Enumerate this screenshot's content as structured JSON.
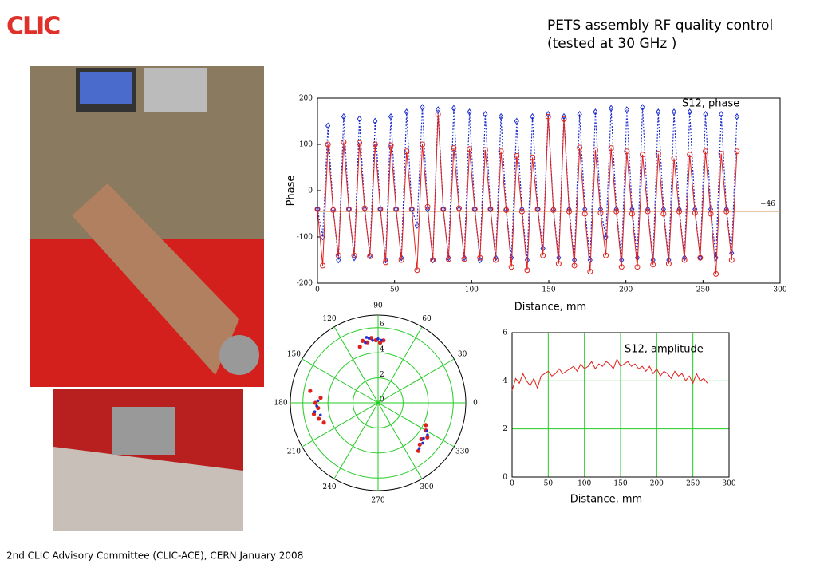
{
  "logo": "CLIC",
  "title": [
    "PETS assembly  RF quality control",
    "(tested at 30 GHz )"
  ],
  "footer": "2nd CLIC Advisory Committee (CLIC-ACE), CERN January 2008",
  "chart_data": [
    {
      "type": "line",
      "annotation": "S12, phase",
      "xlabel": "Distance, mm",
      "ylabel": "Phase",
      "xlim": [
        0,
        300
      ],
      "xticks": [
        0,
        50,
        100,
        150,
        200,
        250,
        300
      ],
      "ylim": [
        -200,
        200
      ],
      "yticks": [
        -200,
        -100,
        0,
        100,
        200
      ],
      "grid": false,
      "hline": {
        "value": -46,
        "label": "−46"
      },
      "x": [
        0,
        3.4,
        6.8,
        10.2,
        13.6,
        17,
        20.4,
        23.8,
        27.2,
        30.6,
        34,
        37.4,
        40.8,
        44.2,
        47.6,
        51,
        54.4,
        57.8,
        61.2,
        64.6,
        68,
        71.4,
        74.8,
        78.2,
        81.6,
        85,
        88.4,
        91.8,
        95.2,
        98.6,
        102,
        105.4,
        108.8,
        112.2,
        115.6,
        119,
        122.4,
        125.8,
        129.2,
        132.6,
        136,
        139.4,
        142.8,
        146.2,
        149.6,
        153,
        156.4,
        159.8,
        163.2,
        166.6,
        170,
        173.4,
        176.8,
        180.2,
        183.6,
        187,
        190.4,
        193.8,
        197.2,
        200.6,
        204,
        207.4,
        210.8,
        214.2,
        217.6,
        221,
        224.4,
        227.8,
        231.2,
        234.6,
        238,
        241.4,
        244.8,
        248.2,
        251.6,
        255,
        258.4,
        261.8,
        265.2,
        268.6,
        272
      ],
      "series": [
        {
          "color": "#1f2fd0",
          "marker": "diamond",
          "dash": true,
          "values": [
            -40,
            -100,
            140,
            -40,
            -150,
            160,
            -40,
            -145,
            155,
            -40,
            -140,
            150,
            -40,
            -150,
            160,
            -40,
            -145,
            170,
            -40,
            -75,
            180,
            -40,
            -150,
            175,
            -40,
            -145,
            178,
            -40,
            -145,
            170,
            -40,
            -150,
            165,
            -40,
            -145,
            160,
            -40,
            -145,
            150,
            -40,
            -150,
            160,
            -40,
            -125,
            165,
            -40,
            -145,
            160,
            -40,
            -150,
            165,
            -40,
            -150,
            170,
            -40,
            -100,
            178,
            -40,
            -150,
            175,
            -40,
            -145,
            180,
            -40,
            -150,
            170,
            -40,
            -150,
            170,
            -40,
            -145,
            170,
            -40,
            -145,
            165,
            -40,
            -145,
            165,
            -40,
            -135,
            160
          ]
        },
        {
          "color": "#e0201c",
          "marker": "circle",
          "dash": false,
          "values": [
            -40,
            -162,
            100,
            -42,
            -140,
            105,
            -40,
            -140,
            103,
            -38,
            -142,
            100,
            -40,
            -155,
            98,
            -40,
            -150,
            85,
            -40,
            -172,
            100,
            -35,
            -150,
            165,
            -40,
            -148,
            92,
            -38,
            -148,
            90,
            -40,
            -145,
            88,
            -40,
            -150,
            85,
            -42,
            -165,
            75,
            -45,
            -172,
            72,
            -40,
            -140,
            160,
            -42,
            -158,
            155,
            -45,
            -162,
            93,
            -50,
            -175,
            88,
            -48,
            -140,
            92,
            -45,
            -165,
            85,
            -50,
            -165,
            78,
            -45,
            -160,
            80,
            -50,
            -158,
            70,
            -45,
            -150,
            78,
            -48,
            -145,
            85,
            -50,
            -180,
            80,
            -45,
            -150,
            85
          ]
        }
      ]
    },
    {
      "type": "polar-scatter",
      "rlim": [
        0,
        7
      ],
      "rticks": [
        0,
        2,
        4,
        6
      ],
      "thetaticks": [
        0,
        30,
        60,
        90,
        120,
        150,
        180,
        210,
        240,
        270,
        300,
        330
      ],
      "grid_color": "#22cc22",
      "series": [
        {
          "color": "#e0201c",
          "theta": [
            92,
            96,
            100,
            104,
            88,
            85,
            108,
            175,
            180,
            185,
            190,
            195,
            320,
            325,
            330,
            315,
            310,
            170,
            200,
            335
          ],
          "r": [
            5.0,
            5.2,
            4.9,
            5.1,
            4.8,
            5.0,
            4.7,
            4.6,
            5.0,
            4.8,
            5.2,
            4.9,
            4.5,
            4.8,
            4.4,
            4.7,
            5.0,
            5.5,
            4.6,
            4.2
          ]
        },
        {
          "color": "#1f2fd0",
          "theta": [
            90,
            95,
            98,
            102,
            87,
            178,
            183,
            188,
            192,
            322,
            327,
            318,
            312,
            330,
            100
          ],
          "r": [
            5.1,
            5.0,
            5.2,
            4.9,
            5.0,
            4.8,
            4.9,
            5.1,
            4.7,
            4.6,
            4.7,
            4.8,
            4.9,
            4.5,
            5.3
          ]
        }
      ]
    },
    {
      "type": "line",
      "annotation": "S12, amplitude",
      "xlabel": "Distance, mm",
      "xlim": [
        0,
        300
      ],
      "xticks": [
        0,
        50,
        100,
        150,
        200,
        250,
        300
      ],
      "ylim": [
        0,
        6
      ],
      "yticks": [
        0,
        2,
        4,
        6
      ],
      "grid": true,
      "grid_color": "#22cc22",
      "x": [
        0,
        5,
        10,
        15,
        20,
        25,
        30,
        35,
        40,
        45,
        50,
        55,
        60,
        65,
        70,
        75,
        80,
        85,
        90,
        95,
        100,
        105,
        110,
        115,
        120,
        125,
        130,
        135,
        140,
        145,
        150,
        155,
        160,
        165,
        170,
        175,
        180,
        185,
        190,
        195,
        200,
        205,
        210,
        215,
        220,
        225,
        230,
        235,
        240,
        245,
        250,
        255,
        260,
        265,
        270
      ],
      "series": [
        {
          "color": "#e0201c",
          "marker": "none",
          "dash": false,
          "values": [
            3.6,
            4.1,
            3.9,
            4.3,
            4.0,
            3.8,
            4.1,
            3.7,
            4.2,
            4.3,
            4.4,
            4.2,
            4.3,
            4.5,
            4.3,
            4.4,
            4.5,
            4.6,
            4.4,
            4.7,
            4.5,
            4.6,
            4.8,
            4.5,
            4.7,
            4.6,
            4.8,
            4.7,
            4.5,
            4.9,
            4.6,
            4.7,
            4.8,
            4.6,
            4.7,
            4.5,
            4.6,
            4.4,
            4.6,
            4.3,
            4.5,
            4.2,
            4.4,
            4.3,
            4.1,
            4.4,
            4.2,
            4.3,
            4.0,
            4.2,
            3.9,
            4.3,
            4.0,
            4.1,
            3.9
          ]
        }
      ]
    }
  ]
}
